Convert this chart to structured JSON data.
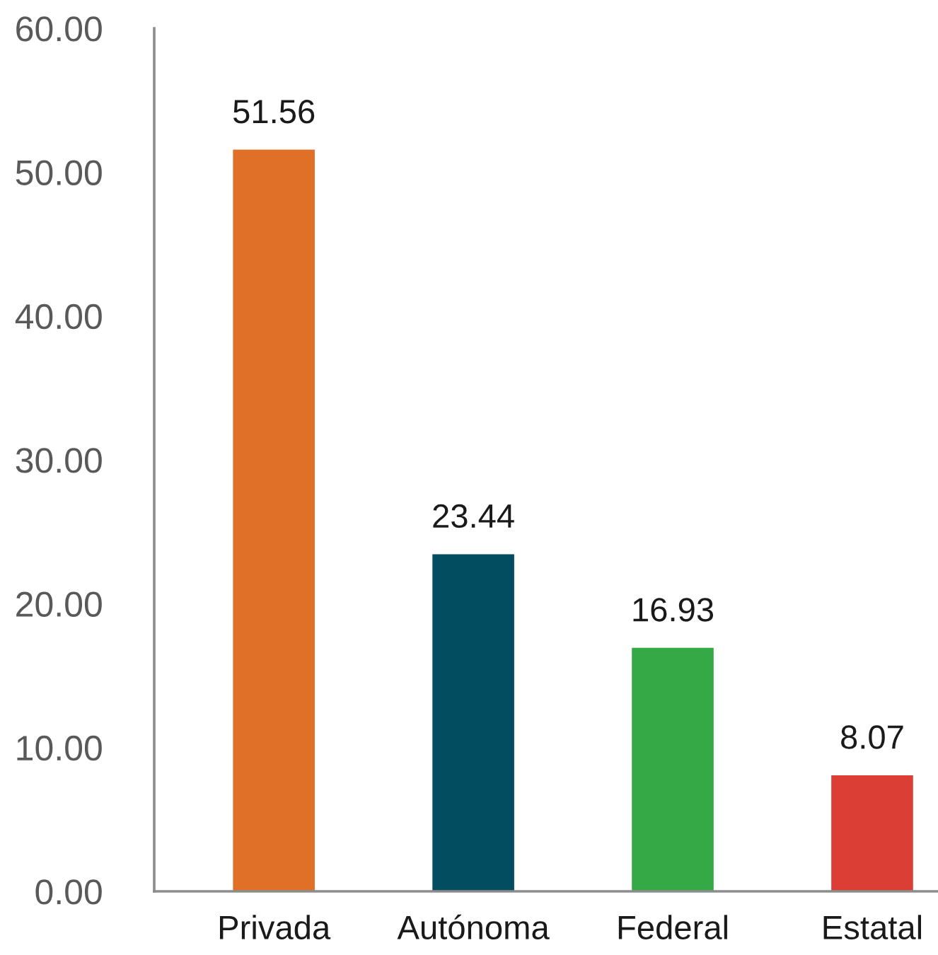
{
  "chart_data": {
    "type": "bar",
    "categories": [
      "Privada",
      "Autónoma",
      "Federal",
      "Estatal"
    ],
    "values": [
      51.56,
      23.44,
      16.93,
      8.07
    ],
    "colors": [
      "#e07028",
      "#034d60",
      "#34a946",
      "#db3e34"
    ],
    "ylim": [
      0,
      60
    ],
    "yticks": [
      {
        "value": 0,
        "label": "0.00"
      },
      {
        "value": 10,
        "label": "10.00"
      },
      {
        "value": 20,
        "label": "20.00"
      },
      {
        "value": 30,
        "label": "30.00"
      },
      {
        "value": 40,
        "label": "40.00"
      },
      {
        "value": 50,
        "label": "50.00"
      },
      {
        "value": 60,
        "label": "60.00"
      }
    ],
    "data_labels": true,
    "grid": false,
    "legend": false
  }
}
